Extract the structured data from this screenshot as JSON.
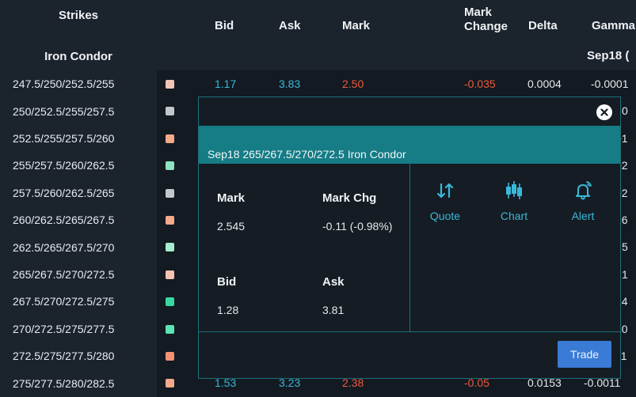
{
  "left_panel": {
    "header": "Strikes",
    "subheader": "Iron Condor",
    "strikes": [
      {
        "label": "247.5/250/252.5/255",
        "color": "#f2c4b4"
      },
      {
        "label": "250/252.5/255/257.5",
        "color": "#c4c7ca"
      },
      {
        "label": "252.5/255/257.5/260",
        "color": "#f4a98a"
      },
      {
        "label": "255/257.5/260/262.5",
        "color": "#8de3bf"
      },
      {
        "label": "257.5/260/262.5/265",
        "color": "#c4c7ca"
      },
      {
        "label": "260/262.5/265/267.5",
        "color": "#f4a98a"
      },
      {
        "label": "262.5/265/267.5/270",
        "color": "#a7ecd0"
      },
      {
        "label": "265/267.5/270/272.5",
        "color": "#f6c3b1"
      },
      {
        "label": "267.5/270/272.5/275",
        "color": "#38d9a0"
      },
      {
        "label": "270/272.5/275/277.5",
        "color": "#5ce3b1"
      },
      {
        "label": "272.5/275/277.5/280",
        "color": "#f29174"
      },
      {
        "label": "275/277.5/280/282.5",
        "color": "#f4a98a"
      }
    ]
  },
  "columns": {
    "bid": "Bid",
    "ask": "Ask",
    "mark": "Mark",
    "mark_change_1": "Mark",
    "mark_change_2": "Change",
    "delta": "Delta",
    "gamma": "Gamma"
  },
  "expiry": "Sep18 (",
  "rows": [
    {
      "bid": "1.17",
      "ask": "3.83",
      "mark": "2.50",
      "chg": "-0.035",
      "delta": "0.0004",
      "gamma": "-0.0001"
    },
    {
      "gamma": "0"
    },
    {
      "gamma": "01"
    },
    {
      "gamma": "02"
    },
    {
      "gamma": "02"
    },
    {
      "gamma": "26"
    },
    {
      "gamma": "5"
    },
    {
      "gamma": "1"
    },
    {
      "gamma": "14"
    },
    {
      "gamma": "10"
    },
    {
      "gamma": "11"
    },
    {
      "bid": "1.53",
      "ask": "3.23",
      "mark": "2.38",
      "chg": "-0.05",
      "delta": "0.0153",
      "gamma": "-0.0011"
    }
  ],
  "popup": {
    "title": "Sep18 265/267.5/270/272.5 Iron Condor",
    "mark_label": "Mark",
    "mark_value": "2.545",
    "mark_chg_label": "Mark Chg",
    "mark_chg_value": "-0.11 (-0.98%)",
    "bid_label": "Bid",
    "bid_value": "1.28",
    "ask_label": "Ask",
    "ask_value": "3.81",
    "actions": [
      {
        "label": "Quote",
        "icon": "quote-arrows-icon"
      },
      {
        "label": "Chart",
        "icon": "candlestick-chart-icon"
      },
      {
        "label": "Alert",
        "icon": "bell-alert-icon"
      }
    ],
    "trade_label": "Trade"
  },
  "colors": {
    "accent": "#3bb8d8",
    "negative": "#ef5a3c",
    "teal_band": "#167c86",
    "trade_button": "#3a7bd5"
  }
}
